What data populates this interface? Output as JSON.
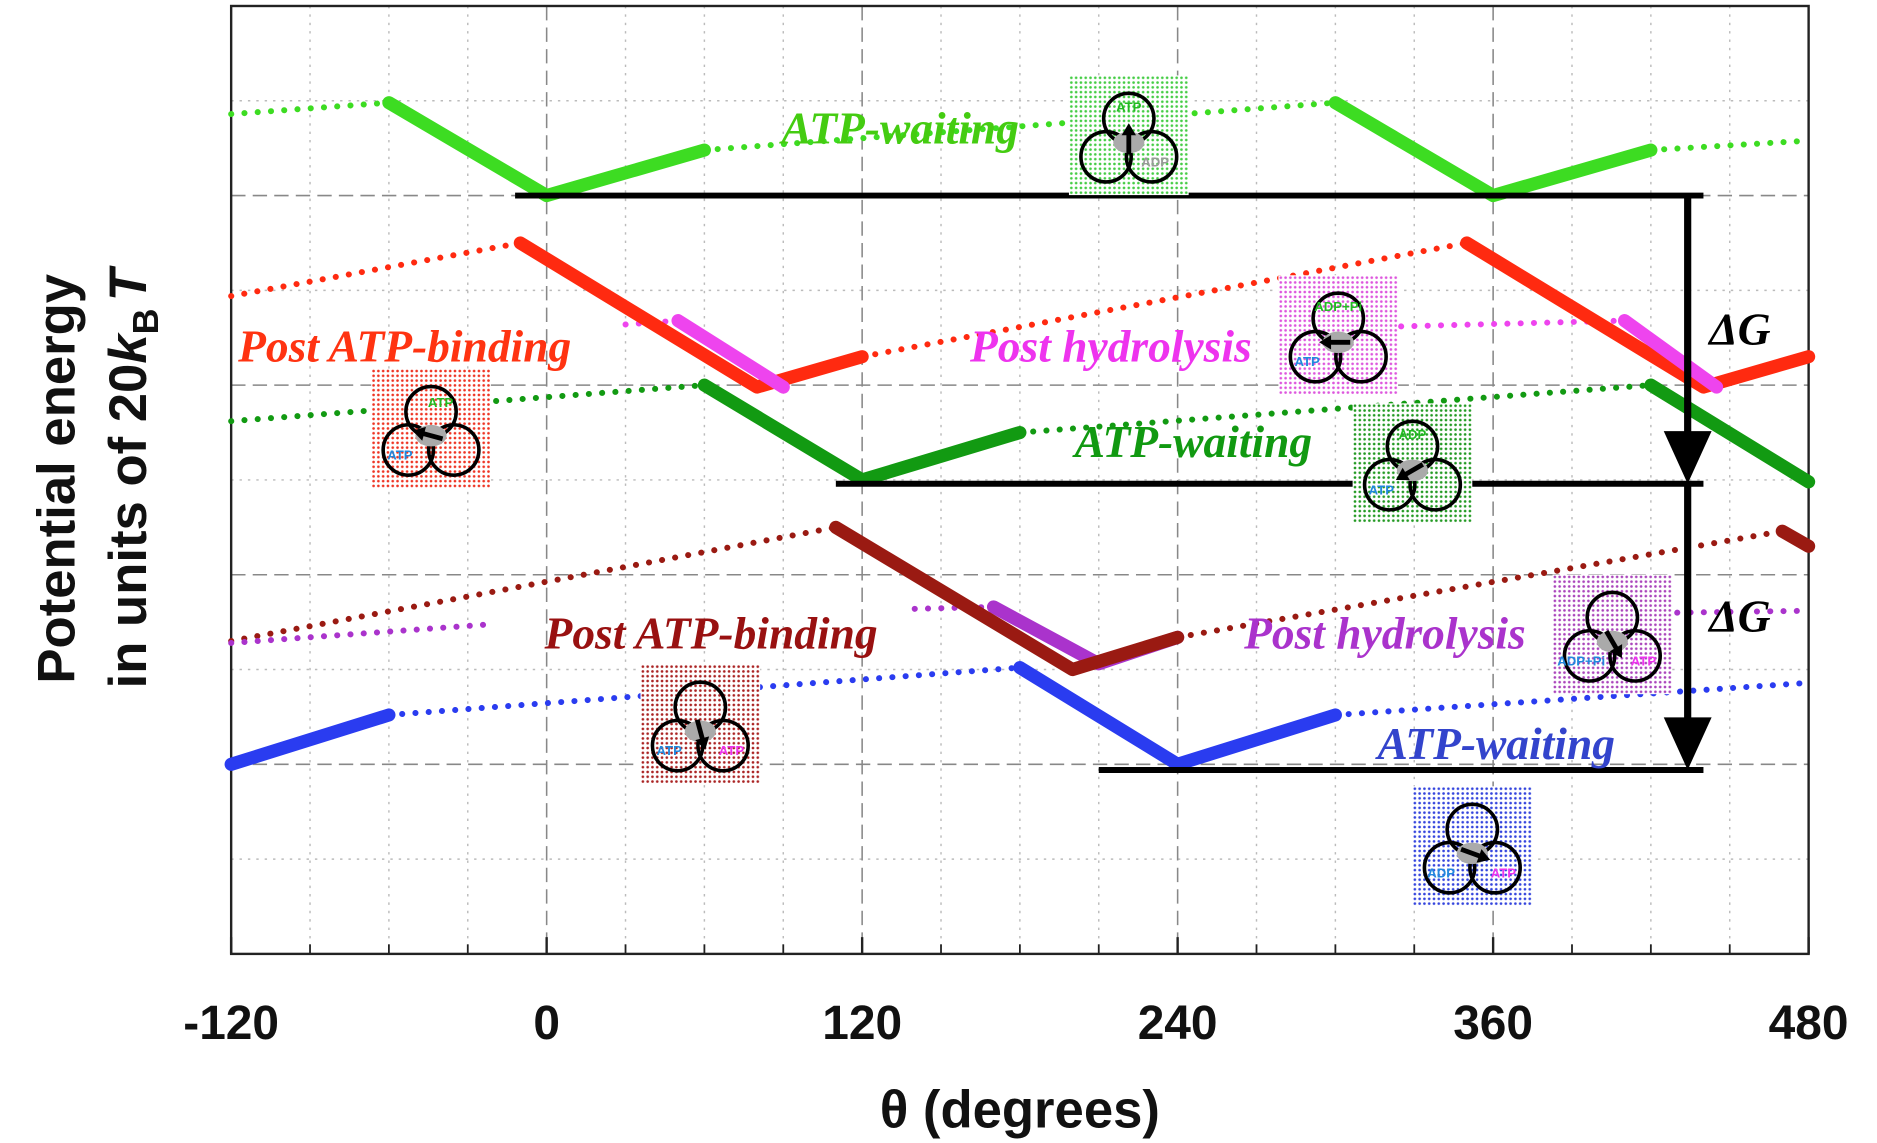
{
  "chart_data": {
    "type": "line",
    "xlabel": "θ  (degrees)",
    "ylabel": [
      "Potential energy",
      [
        "in units of 20",
        "k",
        "B",
        "T"
      ]
    ],
    "xlim": [
      -120,
      480
    ],
    "xticks": [
      -120,
      0,
      120,
      240,
      360,
      480
    ],
    "xminorticks": [
      -90,
      -60,
      -30,
      30,
      60,
      90,
      150,
      180,
      210,
      270,
      300,
      330,
      390,
      420,
      450
    ],
    "ylim": [
      0,
      5
    ],
    "yticks": [
      1,
      2,
      3,
      4
    ],
    "yminorticks": [
      0.5,
      1.5,
      2.5,
      3.5,
      4.5
    ],
    "grid": true,
    "series": [
      {
        "color": "#3ddc22",
        "style": "dotted",
        "x": [
          -120,
          -60,
          0,
          60,
          300,
          360,
          420,
          480
        ],
        "values": [
          4.43,
          4.49,
          null,
          4.24,
          4.49,
          null,
          4.24,
          4.29
        ]
      },
      {
        "color": "#ff2a10",
        "style": "dotted",
        "x": [
          -120,
          -10,
          50,
          120,
          350
        ],
        "values": [
          3.47,
          3.75,
          null,
          3.15,
          3.75
        ]
      },
      {
        "color": "#ee44ee",
        "style": "dotted",
        "x": [
          30,
          50,
          250,
          325,
          410
        ],
        "values": [
          3.32,
          3.34,
          null,
          3.31,
          3.34
        ]
      },
      {
        "color": "#129a12",
        "style": "dotted",
        "x": [
          -120,
          60,
          120,
          180,
          420
        ],
        "values": [
          2.81,
          3.0,
          null,
          2.75,
          3.0
        ]
      },
      {
        "color": "#9a1a12",
        "style": "dotted",
        "x": [
          -120,
          110,
          175,
          240,
          470
        ],
        "values": [
          1.65,
          2.25,
          null,
          1.67,
          2.23
        ]
      },
      {
        "color": "#aa33cc",
        "style": "dotted",
        "x": [
          -120,
          -20,
          60,
          140,
          170,
          300,
          430,
          480
        ],
        "values": [
          1.64,
          1.74,
          null,
          1.82,
          1.83,
          null,
          1.8,
          1.81
        ]
      },
      {
        "color": "#2a3cf0",
        "style": "dotted",
        "x": [
          -60,
          180,
          240,
          300,
          480
        ],
        "values": [
          1.26,
          1.51,
          null,
          1.26,
          1.43
        ]
      },
      {
        "color": "#3ddc22",
        "style": "solid",
        "x": [
          -60,
          0,
          60,
          180,
          300,
          360,
          420
        ],
        "values": [
          4.49,
          4.0,
          4.24,
          null,
          4.49,
          4.0,
          4.24
        ]
      },
      {
        "color": "#ff2a10",
        "style": "solid",
        "x": [
          -10,
          80,
          120,
          235,
          350,
          440,
          480
        ],
        "values": [
          3.75,
          2.99,
          3.15,
          null,
          3.75,
          2.99,
          3.15
        ]
      },
      {
        "color": "#ee44ee",
        "style": "solid",
        "x": [
          50,
          90,
          250,
          410,
          445
        ],
        "values": [
          3.34,
          2.99,
          null,
          3.34,
          2.99
        ]
      },
      {
        "color": "#129a12",
        "style": "solid",
        "x": [
          60,
          120,
          180,
          300,
          420,
          480
        ],
        "values": [
          3.0,
          2.5,
          2.75,
          null,
          3.0,
          2.49
        ]
      },
      {
        "color": "#aa33cc",
        "style": "solid",
        "x": [
          170,
          210,
          240
        ],
        "values": [
          1.83,
          1.53,
          1.67
        ]
      },
      {
        "color": "#9a1a12",
        "style": "solid",
        "x": [
          110,
          200,
          240,
          355,
          470,
          480
        ],
        "values": [
          2.25,
          1.5,
          1.67,
          null,
          2.23,
          2.15
        ]
      },
      {
        "color": "#2a3cf0",
        "style": "solid",
        "x": [
          -120,
          -60,
          60,
          180,
          240,
          300
        ],
        "values": [
          1.0,
          1.26,
          null,
          1.51,
          1.0,
          1.26
        ]
      }
    ],
    "hlines": [
      {
        "y": 4.0,
        "xmin": -12,
        "xmax": 440
      },
      {
        "y": 2.48,
        "xmin": 110,
        "xmax": 440
      },
      {
        "y": 0.97,
        "xmin": 210,
        "xmax": 440
      }
    ],
    "arrows": [
      {
        "x": 434,
        "from": 4.0,
        "to": 2.48,
        "label": "ΔG"
      },
      {
        "x": 434,
        "from": 2.48,
        "to": 0.97,
        "label": "ΔG"
      }
    ],
    "annotations": [
      {
        "text": "ATP-waiting",
        "color": "#44cc11"
      },
      {
        "text": "Post ATP-binding",
        "color": "#ff3311"
      },
      {
        "text": "Post hydrolysis",
        "color": "#ee33ee"
      },
      {
        "text": "ATP-waiting",
        "color": "#119911"
      },
      {
        "text": "Post ATP-binding",
        "color": "#991111"
      },
      {
        "text": "Post hydrolysis",
        "color": "#aa33cc"
      },
      {
        "text": "ATP-waiting",
        "color": "#3344cc"
      }
    ],
    "icons": [
      {
        "color": "#44cc44",
        "labels": [
          {
            "text": "ATP",
            "color": "#22bb22"
          },
          {
            "text": "ADP",
            "color": "#999999"
          }
        ]
      },
      {
        "color": "#ee3322",
        "labels": [
          {
            "text": "ATP",
            "color": "#22bb22"
          },
          {
            "text": "ATP",
            "color": "#2288dd"
          }
        ]
      },
      {
        "color": "#dd55dd",
        "labels": [
          {
            "text": "ADP+Pi",
            "color": "#22bb22"
          },
          {
            "text": "ATP",
            "color": "#2288dd"
          }
        ]
      },
      {
        "color": "#229922",
        "labels": [
          {
            "text": "ADP",
            "color": "#22bb22"
          },
          {
            "text": "ATP",
            "color": "#2288dd"
          }
        ]
      },
      {
        "color": "#aa2222",
        "labels": [
          {
            "text": "ATP",
            "color": "#2288dd"
          },
          {
            "text": "ATP",
            "color": "#ee33ee"
          }
        ]
      },
      {
        "color": "#aa44bb",
        "labels": [
          {
            "text": "ADP+Pi",
            "color": "#2288dd"
          },
          {
            "text": "ATP",
            "color": "#ee33ee"
          }
        ]
      },
      {
        "color": "#3344dd",
        "labels": [
          {
            "text": "ADP",
            "color": "#2288dd"
          },
          {
            "text": "ATP",
            "color": "#ee33ee"
          }
        ]
      }
    ]
  }
}
